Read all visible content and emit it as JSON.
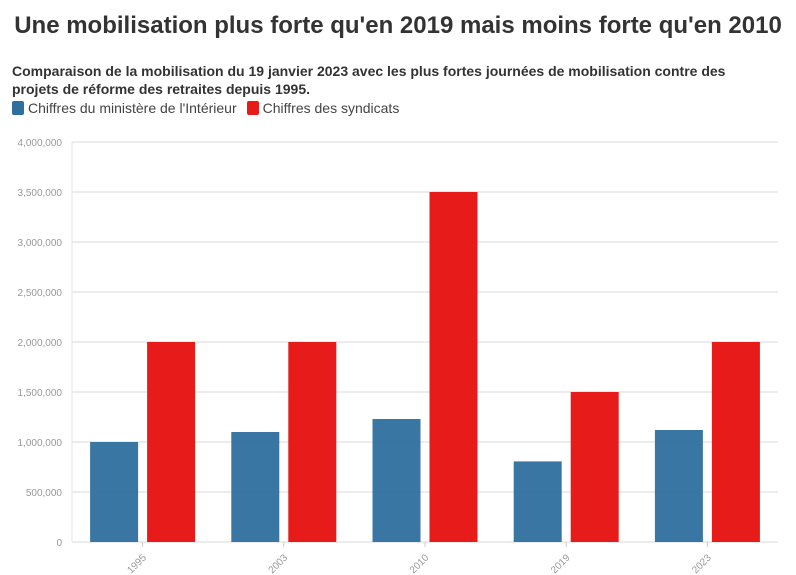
{
  "chart_data": {
    "type": "bar",
    "title": "Une mobilisation plus forte qu'en 2019 mais moins forte qu'en 2010",
    "subtitle": "Comparaison de la mobilisation du 19 janvier 2023 avec les plus fortes journées de mobilisation contre des projets de réforme des retraites depuis 1995.",
    "categories": [
      "1995",
      "2003",
      "2010",
      "2019",
      "2023"
    ],
    "series": [
      {
        "name": "Chiffres du ministère de l'Intérieur",
        "color": "#2e6f9e",
        "values": [
          1000000,
          1100000,
          1230000,
          806000,
          1120000
        ]
      },
      {
        "name": "Chiffres des syndicats",
        "color": "#e81b1b",
        "values": [
          2000000,
          2000000,
          3500000,
          1500000,
          2000000
        ]
      }
    ],
    "ylim": [
      0,
      4000000
    ],
    "yticks": [
      "0",
      "500,000",
      "1,000,000",
      "1,500,000",
      "2,000,000",
      "2,500,000",
      "3,000,000",
      "3,500,000",
      "4,000,000"
    ],
    "grid": true,
    "legend": "top-left",
    "xlabel": "",
    "ylabel": ""
  }
}
